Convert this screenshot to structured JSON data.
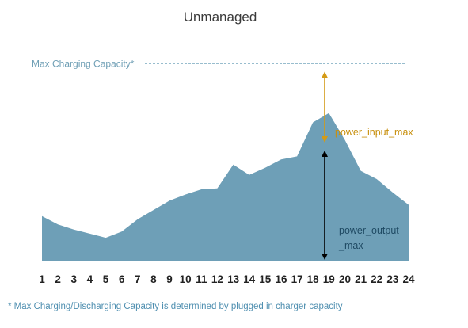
{
  "chart_data": {
    "type": "area",
    "title": "Unmanaged",
    "x": [
      "1",
      "2",
      "3",
      "4",
      "5",
      "6",
      "7",
      "8",
      "9",
      "10",
      "11",
      "12",
      "13",
      "14",
      "15",
      "16",
      "17",
      "18",
      "19",
      "20",
      "21",
      "22",
      "23",
      "24"
    ],
    "series": [
      {
        "values": [
          44,
          36,
          31,
          27,
          23,
          29,
          41,
          50,
          59,
          65,
          70,
          71,
          94,
          84,
          91,
          99,
          102,
          135,
          144,
          118,
          88,
          80,
          67,
          55
        ]
      }
    ],
    "ylim": [
      0,
      200
    ],
    "max_line": {
      "label": "Max Charging Capacity*",
      "value": 192
    },
    "annotations": {
      "power_input_max": "power_input_max",
      "power_output_max": [
        "power_output",
        "_max"
      ]
    },
    "footnote": "* Max Charging/Discharging Capacity is determined by plugged in charger capacity",
    "colors": {
      "area": "#6e9fb7",
      "max_line": "#8ab4c8",
      "input_arrow": "#d49a16",
      "output_arrow": "#000000"
    }
  }
}
